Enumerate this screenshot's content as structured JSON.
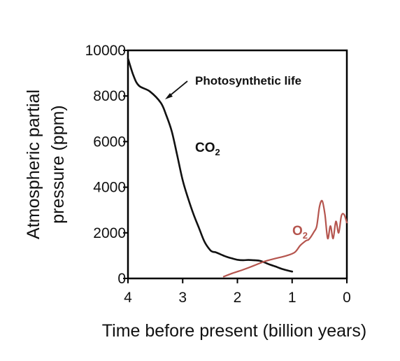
{
  "chart_data": {
    "type": "line",
    "title": "",
    "xlabel": "Time before present (billion years)",
    "ylabel": [
      "Atmospheric partial",
      "pressure (ppm)"
    ],
    "xlim": [
      4,
      0
    ],
    "ylim": [
      0,
      10000
    ],
    "x_ticks": [
      4,
      3,
      2,
      1,
      0
    ],
    "y_ticks": [
      10000,
      8000,
      6000,
      4000,
      2000,
      0
    ],
    "x_tick_labels": [
      "4",
      "3",
      "2",
      "1",
      "0"
    ],
    "y_tick_labels": [
      "10000",
      "8000",
      "6000",
      "4000",
      "2000",
      "0"
    ],
    "grid": false,
    "series": [
      {
        "name": "CO2",
        "color": "#111111",
        "x": [
          4.0,
          3.9,
          3.8,
          3.6,
          3.4,
          3.3,
          3.2,
          3.1,
          3.0,
          2.9,
          2.8,
          2.7,
          2.6,
          2.5,
          2.45,
          2.4,
          2.3,
          2.2,
          2.1,
          2.0,
          1.9,
          1.8,
          1.7,
          1.6,
          1.5,
          1.4,
          1.3,
          1.2,
          1.1,
          1.0
        ],
        "y": [
          9650,
          8900,
          8450,
          8200,
          7700,
          7150,
          6450,
          5400,
          4300,
          3500,
          2800,
          2200,
          1600,
          1250,
          1170,
          1150,
          1050,
          950,
          880,
          820,
          800,
          810,
          800,
          780,
          700,
          600,
          520,
          430,
          360,
          300
        ]
      },
      {
        "name": "O2",
        "color": "#b5554e",
        "x": [
          2.25,
          2.1,
          1.9,
          1.7,
          1.5,
          1.3,
          1.1,
          0.95,
          0.85,
          0.75,
          0.7,
          0.65,
          0.6,
          0.55,
          0.5,
          0.45,
          0.4,
          0.35,
          0.3,
          0.25,
          0.2,
          0.15,
          0.1,
          0.05,
          0.0
        ],
        "y": [
          80,
          220,
          380,
          560,
          750,
          880,
          1000,
          1150,
          1450,
          1650,
          1700,
          1850,
          2050,
          2300,
          3150,
          3400,
          2800,
          1750,
          2300,
          1750,
          2500,
          2000,
          2750,
          2800,
          2450
        ]
      }
    ],
    "annotations": {
      "photosynthetic": "Photosynthetic life",
      "co2_label": "CO",
      "co2_sub": "2",
      "o2_label": "O",
      "o2_sub": "2"
    }
  }
}
